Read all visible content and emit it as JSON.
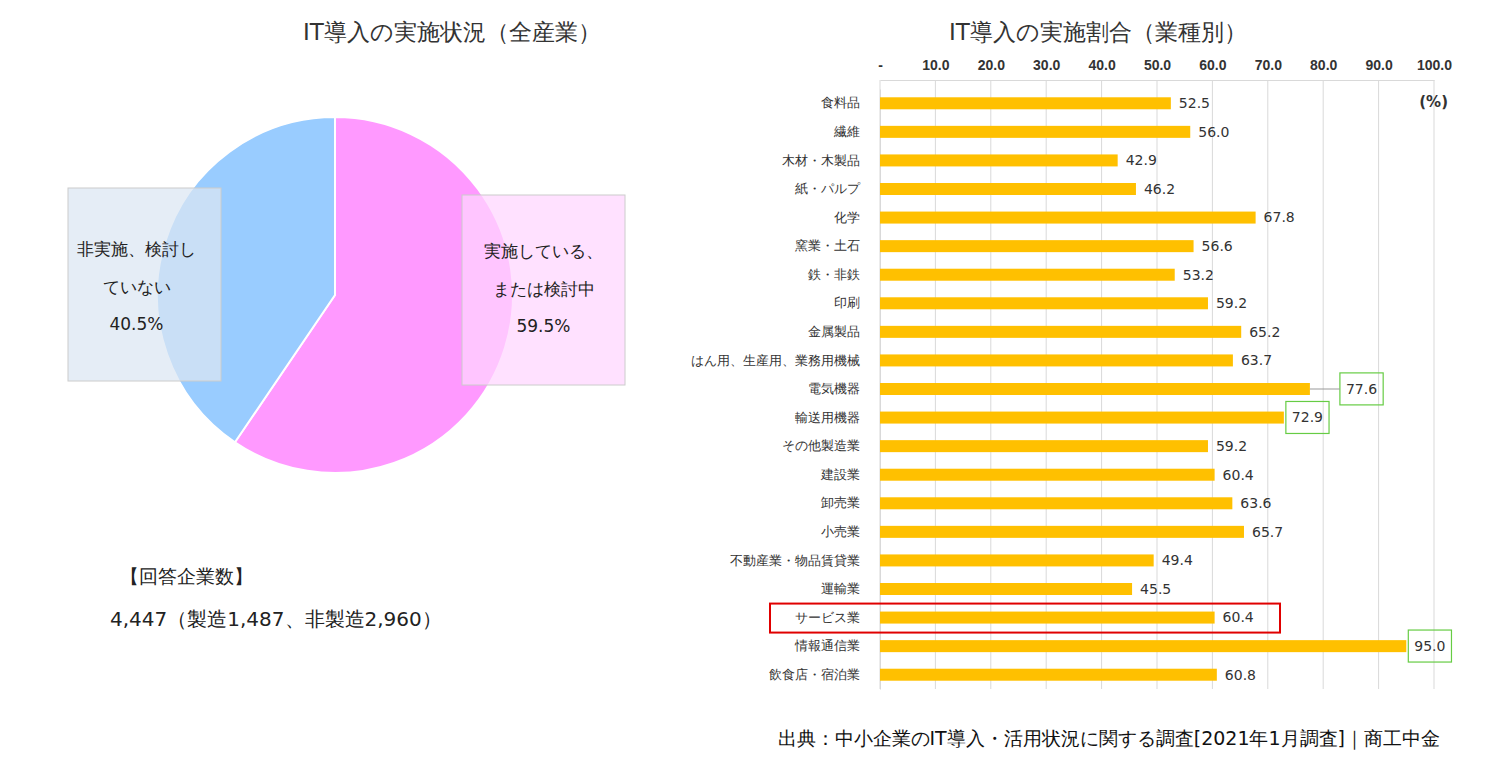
{
  "chart_data": [
    {
      "type": "pie",
      "title": "IT導入の実施状況（全産業）",
      "categories": [
        "実施している、または検討中",
        "非実施、検討していない"
      ],
      "values": [
        59.5,
        40.5
      ],
      "value_labels": [
        "59.5%",
        "40.5%"
      ],
      "colors": [
        "#ff99ff",
        "#99ccff"
      ],
      "data_labels": true,
      "annotations": [
        "【回答企業数】",
        "4,447（製造1,487、非製造2,960）"
      ]
    },
    {
      "type": "bar",
      "orientation": "horizontal",
      "title": "IT導入の実施割合（業種別）",
      "categories": [
        "食料品",
        "繊維",
        "木材・木製品",
        "紙・パルプ",
        "化学",
        "窯業・土石",
        "鉄・非鉄",
        "印刷",
        "金属製品",
        "はん用、生産用、業務用機械",
        "電気機器",
        "輸送用機器",
        "その他製造業",
        "建設業",
        "卸売業",
        "小売業",
        "不動産業・物品賃貸業",
        "運輸業",
        "サービス業",
        "情報通信業",
        "飲食店・宿泊業"
      ],
      "values": [
        52.5,
        56.0,
        42.9,
        46.2,
        67.8,
        56.6,
        53.2,
        59.2,
        65.2,
        63.7,
        77.6,
        72.9,
        59.2,
        60.4,
        63.6,
        65.7,
        49.4,
        45.5,
        60.4,
        95.0,
        60.8
      ],
      "value_labels": [
        "52.5",
        "56.0",
        "42.9",
        "46.2",
        "67.8",
        "56.6",
        "53.2",
        "59.2",
        "65.2",
        "63.7",
        "77.6",
        "72.9",
        "59.2",
        "60.4",
        "63.6",
        "65.7",
        "49.4",
        "45.5",
        "60.4",
        "95.0",
        "60.8"
      ],
      "color": "#ffc000",
      "xlim": [
        0,
        100
      ],
      "xticks": [
        {
          "value": 0,
          "label": "-"
        },
        {
          "value": 10,
          "label": "10.0"
        },
        {
          "value": 20,
          "label": "20.0"
        },
        {
          "value": 30,
          "label": "30.0"
        },
        {
          "value": 40,
          "label": "40.0"
        },
        {
          "value": 50,
          "label": "50.0"
        },
        {
          "value": 60,
          "label": "60.0"
        },
        {
          "value": 70,
          "label": "70.0"
        },
        {
          "value": 80,
          "label": "80.0"
        },
        {
          "value": 90,
          "label": "90.0"
        },
        {
          "value": 100,
          "label": "100.0"
        }
      ],
      "grid": true,
      "data_labels": true,
      "annotations": [
        "(%)",
        "出典：中小企業のIT導入・活用状況に関する調査[2021年1月調査]｜商工中金"
      ]
    }
  ]
}
